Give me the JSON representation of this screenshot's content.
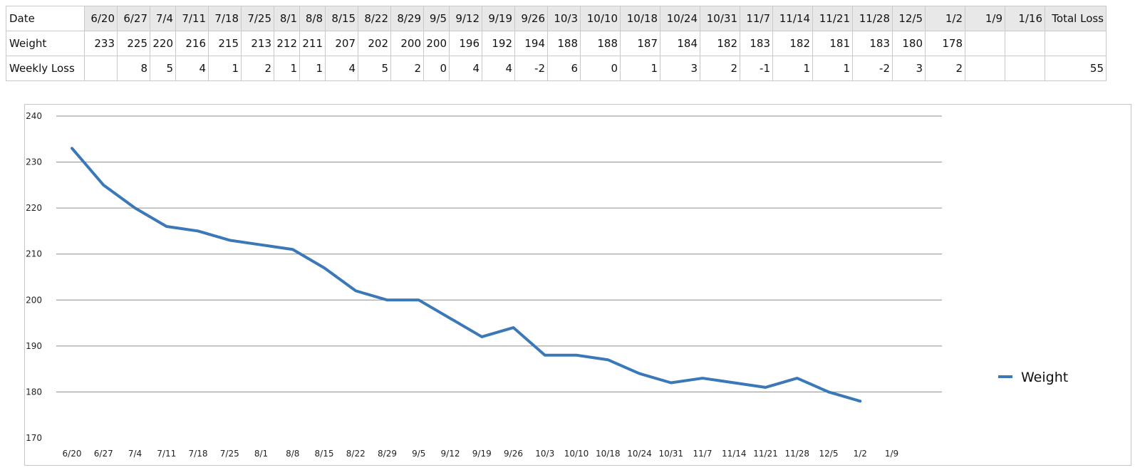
{
  "table": {
    "date_label": "Date",
    "weight_label": "Weight",
    "loss_label": "Weekly Loss",
    "total_label": "Total Loss",
    "dates": [
      "6/20",
      "6/27",
      "7/4",
      "7/11",
      "7/18",
      "7/25",
      "8/1",
      "8/8",
      "8/15",
      "8/22",
      "8/29",
      "9/5",
      "9/12",
      "9/19",
      "9/26",
      "10/3",
      "10/10",
      "10/18",
      "10/24",
      "10/31",
      "11/7",
      "11/14",
      "11/21",
      "11/28",
      "12/5",
      "1/2",
      "1/9",
      "1/16"
    ],
    "weights": [
      "233",
      "225",
      "220",
      "216",
      "215",
      "213",
      "212",
      "211",
      "207",
      "202",
      "200",
      "200",
      "196",
      "192",
      "194",
      "188",
      "188",
      "187",
      "184",
      "182",
      "183",
      "182",
      "181",
      "183",
      "180",
      "178",
      "",
      ""
    ],
    "losses": [
      "",
      "8",
      "5",
      "4",
      "1",
      "2",
      "1",
      "1",
      "4",
      "5",
      "2",
      "0",
      "4",
      "4",
      "-2",
      "6",
      "0",
      "1",
      "3",
      "2",
      "-1",
      "1",
      "1",
      "-2",
      "3",
      "2",
      "",
      ""
    ],
    "total_loss": "55"
  },
  "chart_data": {
    "type": "line",
    "categories": [
      "6/20",
      "6/27",
      "7/4",
      "7/11",
      "7/18",
      "7/25",
      "8/1",
      "8/8",
      "8/15",
      "8/22",
      "8/29",
      "9/5",
      "9/12",
      "9/19",
      "9/26",
      "10/3",
      "10/10",
      "10/18",
      "10/24",
      "10/31",
      "11/7",
      "11/14",
      "11/21",
      "11/28",
      "12/5",
      "1/2",
      "1/9"
    ],
    "series": [
      {
        "name": "Weight",
        "color": "#3a78b8",
        "values": [
          233,
          225,
          220,
          216,
          215,
          213,
          212,
          211,
          207,
          202,
          200,
          200,
          196,
          192,
          194,
          188,
          188,
          187,
          184,
          182,
          183,
          182,
          181,
          183,
          180,
          178,
          null
        ]
      }
    ],
    "yticks": [
      170,
      180,
      190,
      200,
      210,
      220,
      230,
      240
    ],
    "ylim": [
      170,
      240
    ],
    "grid": true,
    "legend": "right",
    "title": "",
    "xlabel": "",
    "ylabel": ""
  }
}
